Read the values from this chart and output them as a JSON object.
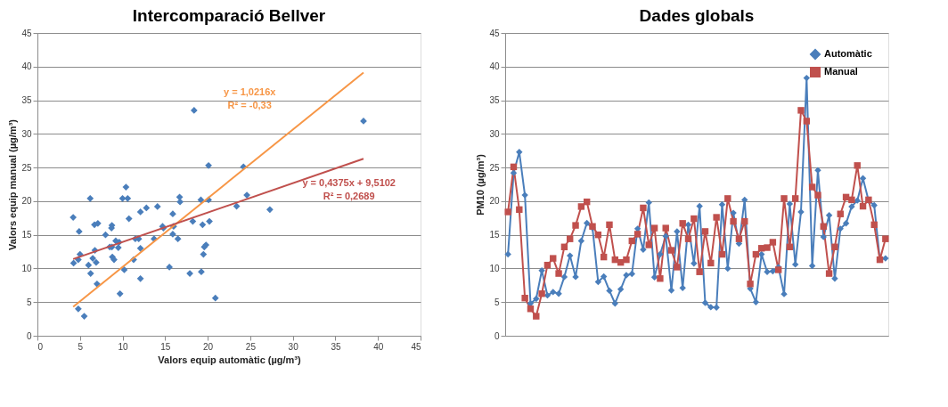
{
  "chart_data": [
    {
      "type": "scatter",
      "title": "Intercomparació Bellver",
      "xlabel": "Valors equip automàtic (µg/m³)",
      "ylabel": "Valors equip manual (µg/m³)",
      "xlim": [
        0,
        45
      ],
      "xticks": [
        0,
        5,
        10,
        15,
        20,
        25,
        30,
        35,
        40,
        45
      ],
      "ylim": [
        0,
        45
      ],
      "yticks": [
        0,
        5,
        10,
        15,
        20,
        25,
        30,
        35,
        40,
        45
      ],
      "grid": "y",
      "series": [
        {
          "type": "scatter",
          "marker": "diamond",
          "color": "#4a7ebb",
          "x": [
            12.1,
            24.2,
            27.3,
            20.9,
            4.8,
            5.5,
            9.7,
            6.0,
            6.5,
            6.25,
            8.75,
            11.9,
            8.75,
            14.1,
            16.75,
            16.0,
            8.0,
            8.8,
            6.7,
            4.8,
            6.9,
            9.0,
            9.2,
            15.9,
            12.8,
            19.8,
            8.7,
            12.1,
            14.8,
            6.75,
            15.5,
            7.1,
            16.5,
            10.75,
            19.25,
            4.9,
            4.25,
            4.2,
            19.5,
            10.0,
            18.25,
            13.7,
            20.2,
            7.0,
            5.0,
            12.1,
            9.5,
            9.6,
            10.2,
            6.2,
            19.6,
            10.6,
            18.4,
            38.3,
            10.4,
            24.6,
            14.7,
            17.9,
            8.5,
            15.9,
            16.7,
            19.2,
            20.1,
            23.4,
            20.1,
            19.4,
            11.3,
            11.5
          ],
          "values": [
            18.4,
            25.1,
            18.75,
            5.6,
            4.0,
            2.9,
            6.25,
            10.5,
            11.5,
            9.25,
            13.2,
            14.4,
            16.4,
            19.2,
            19.9,
            16.25,
            15.0,
            11.7,
            16.5,
            11.3,
            10.9,
            11.3,
            14.1,
            15.1,
            19.0,
            13.5,
            16.0,
            8.5,
            16.0,
            12.7,
            10.2,
            16.7,
            14.4,
            17.4,
            9.5,
            15.5,
            10.8,
            17.6,
            12.1,
            20.4,
            17.0,
            14.4,
            17.0,
            7.7,
            12.1,
            13.0,
            13.1,
            13.9,
            9.8,
            20.4,
            13.2,
            20.4,
            33.5,
            31.9,
            22.1,
            20.9,
            16.25,
            9.25,
            13.2,
            18.1,
            20.6,
            20.2,
            25.3,
            19.25,
            20.2,
            16.5,
            11.3,
            14.4
          ]
        },
        {
          "type": "line",
          "color": "#f79646",
          "x": [
            4.2,
            38.3
          ],
          "values": [
            4.3,
            39.1
          ]
        },
        {
          "type": "line",
          "color": "#c0504d",
          "x": [
            4.2,
            38.3
          ],
          "values": [
            11.4,
            26.3
          ]
        }
      ],
      "annotations": [
        "y = 1,0216x",
        "R² = -0,33",
        "y = 0,4375x + 9,5102",
        "R² = 0,2689"
      ]
    },
    {
      "type": "line",
      "title": "Dades globals",
      "ylabel": "PM10  (µg/m³)",
      "ylim": [
        0,
        45
      ],
      "yticks": [
        0,
        5,
        10,
        15,
        20,
        25,
        30,
        35,
        40,
        45
      ],
      "grid": "y",
      "legend": "top right",
      "tick_labels": "y",
      "categories": [
        null,
        null,
        null,
        null,
        null,
        null,
        null,
        null,
        null,
        null,
        null,
        null,
        null,
        null,
        null,
        null,
        null,
        null,
        null,
        null,
        null,
        null,
        null,
        null,
        null,
        null,
        null,
        null,
        null,
        null,
        null,
        null,
        null,
        null,
        null,
        null,
        null,
        null,
        null,
        null,
        null,
        null,
        null,
        null,
        null,
        null,
        null,
        null,
        null,
        null,
        null,
        null,
        null,
        null,
        null,
        null,
        null,
        null,
        null,
        null,
        null,
        null,
        null,
        null,
        null,
        null,
        null,
        null
      ],
      "series": [
        {
          "name": "Automàtic",
          "marker": "diamond",
          "color": "#4a7ebb",
          "values": [
            12.1,
            24.2,
            27.3,
            20.9,
            4.8,
            5.5,
            9.7,
            6.0,
            6.5,
            6.25,
            8.75,
            11.9,
            8.75,
            14.1,
            16.75,
            16.0,
            8.0,
            8.8,
            6.7,
            4.8,
            6.9,
            9.0,
            9.2,
            15.9,
            12.8,
            19.8,
            8.7,
            12.1,
            14.8,
            6.75,
            15.5,
            7.1,
            16.5,
            10.75,
            19.25,
            4.9,
            4.25,
            4.2,
            19.5,
            10.0,
            18.25,
            13.7,
            20.2,
            7.0,
            5.0,
            12.1,
            9.5,
            9.6,
            10.2,
            6.2,
            19.6,
            10.6,
            18.4,
            38.3,
            10.4,
            24.6,
            14.7,
            17.9,
            8.5,
            15.9,
            16.7,
            19.2,
            20.1,
            23.4,
            20.1,
            19.4,
            11.3,
            11.5
          ]
        },
        {
          "name": "Manual",
          "marker": "square",
          "color": "#c0504d",
          "values": [
            18.4,
            25.1,
            18.75,
            5.6,
            4.0,
            2.9,
            6.25,
            10.5,
            11.5,
            9.25,
            13.2,
            14.4,
            16.4,
            19.2,
            19.9,
            16.25,
            15.0,
            11.7,
            16.5,
            11.3,
            10.9,
            11.3,
            14.1,
            15.1,
            19.0,
            13.5,
            16.0,
            8.5,
            16.0,
            12.7,
            10.2,
            16.7,
            14.4,
            17.4,
            9.5,
            15.5,
            10.8,
            17.6,
            12.1,
            20.4,
            17.0,
            14.4,
            17.0,
            7.7,
            12.1,
            13.0,
            13.1,
            13.9,
            9.8,
            20.4,
            13.2,
            20.4,
            33.5,
            31.9,
            22.1,
            20.9,
            16.25,
            9.25,
            13.2,
            18.1,
            20.6,
            20.2,
            25.3,
            19.25,
            20.2,
            16.5,
            11.3,
            14.4
          ]
        }
      ]
    }
  ]
}
